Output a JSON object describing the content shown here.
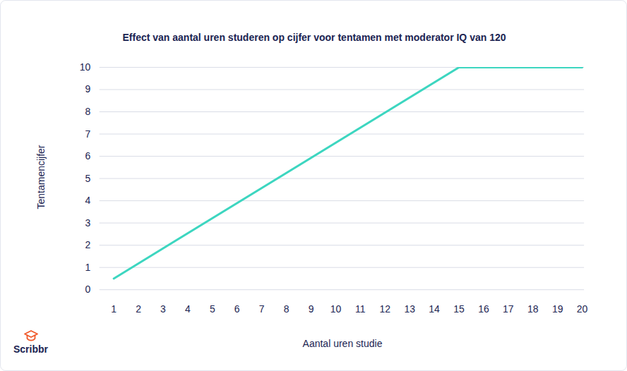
{
  "chart_data": {
    "type": "line",
    "title": "Effect van aantal uren studeren op cijfer voor tentamen met moderator IQ van 120",
    "x_label": "Aantal uren studie",
    "y_label": "Tentamencijfer",
    "logo": "Scribbr",
    "x": [
      1,
      15,
      20
    ],
    "values": [
      0.5,
      10,
      10
    ],
    "color": "#3dd6c0",
    "xlim": [
      1,
      20
    ],
    "xticks": [
      1,
      2,
      3,
      4,
      5,
      6,
      7,
      8,
      9,
      10,
      11,
      12,
      13,
      14,
      15,
      16,
      17,
      18,
      19,
      20
    ],
    "ylim": [
      0,
      10
    ],
    "yticks": [
      0,
      1,
      2,
      3,
      4,
      5,
      6,
      7,
      8,
      9,
      10
    ],
    "grid": true
  }
}
